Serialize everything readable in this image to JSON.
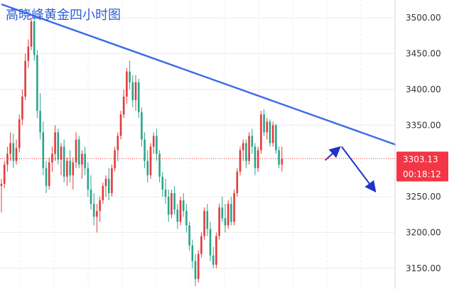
{
  "chart_data": {
    "type": "candlestick",
    "title": "高晓峰黄金四小时图",
    "y_axis": {
      "ticks": [
        3500,
        3450,
        3400,
        3350,
        3250,
        3200,
        3150
      ],
      "tick_labels": [
        "3500.00",
        "3450.00",
        "3400.00",
        "3350.00",
        "3250.00",
        "3200.00",
        "3150.00"
      ],
      "range": [
        3121,
        3525
      ],
      "position": "right"
    },
    "grid": true,
    "current_price": {
      "value": 3303.13,
      "label": "3303.13",
      "countdown": "00:18:12",
      "line_style": "dotted"
    },
    "trendline": {
      "from": {
        "index": 0,
        "value": 3519
      },
      "to": {
        "index": 138,
        "value": 3314
      }
    },
    "forecast_path": [
      {
        "index": 108.5,
        "value": 3301
      },
      {
        "index": 114,
        "value": 3320
      },
      {
        "index": 125,
        "value": 3259
      }
    ],
    "candles_ohlc": [
      [
        3265,
        3275,
        3228,
        3268
      ],
      [
        3268,
        3300,
        3262,
        3295
      ],
      [
        3295,
        3320,
        3285,
        3310
      ],
      [
        3310,
        3340,
        3300,
        3325
      ],
      [
        3325,
        3338,
        3290,
        3300
      ],
      [
        3300,
        3330,
        3295,
        3318
      ],
      [
        3318,
        3365,
        3312,
        3358
      ],
      [
        3358,
        3400,
        3350,
        3390
      ],
      [
        3390,
        3450,
        3385,
        3440
      ],
      [
        3440,
        3470,
        3430,
        3460
      ],
      [
        3460,
        3500,
        3455,
        3495
      ],
      [
        3495,
        3500,
        3440,
        3448
      ],
      [
        3448,
        3455,
        3360,
        3370
      ],
      [
        3370,
        3395,
        3330,
        3340
      ],
      [
        3340,
        3355,
        3280,
        3290
      ],
      [
        3290,
        3300,
        3255,
        3265
      ],
      [
        3265,
        3305,
        3260,
        3298
      ],
      [
        3298,
        3320,
        3285,
        3310
      ],
      [
        3310,
        3350,
        3300,
        3340
      ],
      [
        3340,
        3345,
        3295,
        3302
      ],
      [
        3302,
        3325,
        3280,
        3320
      ],
      [
        3320,
        3330,
        3270,
        3278
      ],
      [
        3278,
        3305,
        3265,
        3300
      ],
      [
        3300,
        3315,
        3270,
        3280
      ],
      [
        3280,
        3305,
        3260,
        3298
      ],
      [
        3298,
        3340,
        3290,
        3330
      ],
      [
        3330,
        3335,
        3290,
        3295
      ],
      [
        3295,
        3315,
        3275,
        3310
      ],
      [
        3310,
        3320,
        3280,
        3290
      ],
      [
        3290,
        3298,
        3250,
        3260
      ],
      [
        3260,
        3280,
        3232,
        3240
      ],
      [
        3240,
        3255,
        3210,
        3222
      ],
      [
        3222,
        3240,
        3200,
        3230
      ],
      [
        3230,
        3250,
        3215,
        3245
      ],
      [
        3245,
        3270,
        3240,
        3265
      ],
      [
        3265,
        3280,
        3250,
        3275
      ],
      [
        3275,
        3290,
        3245,
        3255
      ],
      [
        3255,
        3295,
        3250,
        3290
      ],
      [
        3290,
        3320,
        3285,
        3315
      ],
      [
        3315,
        3340,
        3300,
        3335
      ],
      [
        3335,
        3370,
        3330,
        3365
      ],
      [
        3365,
        3400,
        3360,
        3390
      ],
      [
        3390,
        3430,
        3380,
        3425
      ],
      [
        3425,
        3440,
        3400,
        3410
      ],
      [
        3410,
        3420,
        3375,
        3385
      ],
      [
        3385,
        3420,
        3370,
        3410
      ],
      [
        3410,
        3415,
        3360,
        3368
      ],
      [
        3368,
        3375,
        3320,
        3330
      ],
      [
        3330,
        3340,
        3290,
        3300
      ],
      [
        3300,
        3315,
        3270,
        3280
      ],
      [
        3280,
        3325,
        3275,
        3320
      ],
      [
        3320,
        3340,
        3310,
        3335
      ],
      [
        3335,
        3345,
        3300,
        3310
      ],
      [
        3310,
        3315,
        3270,
        3278
      ],
      [
        3278,
        3285,
        3250,
        3260
      ],
      [
        3260,
        3275,
        3240,
        3250
      ],
      [
        3250,
        3260,
        3215,
        3225
      ],
      [
        3225,
        3260,
        3220,
        3255
      ],
      [
        3255,
        3265,
        3225,
        3232
      ],
      [
        3232,
        3240,
        3205,
        3215
      ],
      [
        3215,
        3250,
        3210,
        3245
      ],
      [
        3245,
        3255,
        3222,
        3230
      ],
      [
        3230,
        3240,
        3200,
        3210
      ],
      [
        3210,
        3215,
        3175,
        3182
      ],
      [
        3182,
        3190,
        3150,
        3160
      ],
      [
        3160,
        3170,
        3125,
        3135
      ],
      [
        3135,
        3175,
        3130,
        3170
      ],
      [
        3170,
        3200,
        3165,
        3195
      ],
      [
        3195,
        3235,
        3190,
        3230
      ],
      [
        3230,
        3240,
        3195,
        3205
      ],
      [
        3205,
        3215,
        3160,
        3168
      ],
      [
        3168,
        3180,
        3150,
        3155
      ],
      [
        3155,
        3200,
        3150,
        3195
      ],
      [
        3195,
        3240,
        3190,
        3235
      ],
      [
        3235,
        3250,
        3215,
        3220
      ],
      [
        3220,
        3240,
        3200,
        3210
      ],
      [
        3210,
        3245,
        3205,
        3240
      ],
      [
        3240,
        3250,
        3210,
        3215
      ],
      [
        3215,
        3260,
        3210,
        3255
      ],
      [
        3255,
        3290,
        3250,
        3285
      ],
      [
        3285,
        3320,
        3280,
        3315
      ],
      [
        3315,
        3330,
        3300,
        3325
      ],
      [
        3325,
        3330,
        3290,
        3300
      ],
      [
        3300,
        3340,
        3295,
        3335
      ],
      [
        3335,
        3345,
        3310,
        3320
      ],
      [
        3320,
        3325,
        3280,
        3290
      ],
      [
        3290,
        3320,
        3285,
        3315
      ],
      [
        3315,
        3370,
        3310,
        3365
      ],
      [
        3365,
        3372,
        3335,
        3340
      ],
      [
        3340,
        3360,
        3330,
        3355
      ],
      [
        3355,
        3358,
        3320,
        3325
      ],
      [
        3325,
        3355,
        3320,
        3350
      ],
      [
        3350,
        3352,
        3310,
        3315
      ],
      [
        3315,
        3320,
        3290,
        3295
      ],
      [
        3295,
        3320,
        3285,
        3303
      ]
    ]
  }
}
